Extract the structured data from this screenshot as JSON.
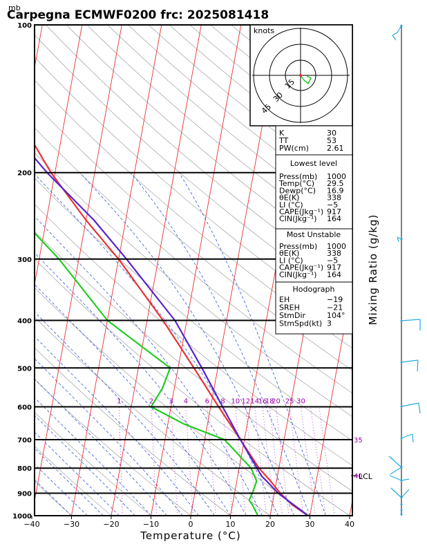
{
  "header": {
    "unit_mb": "mb",
    "title": "Carpegna ECMWF0200 frc: 2025081418"
  },
  "axes": {
    "x_label": "Temperature (°C)",
    "x_ticks": [
      "−40",
      "−30",
      "−20",
      "−10",
      "0",
      "10",
      "20",
      "30",
      "40"
    ],
    "right_label": "Mixing Ratio (g/kg)",
    "lcl_label": "LCL"
  },
  "chart_data": {
    "type": "line",
    "title": "Carpegna ECMWF0200 frc: 2025081418",
    "xlabel": "Temperature (°C)",
    "ylabel": "mb",
    "xlim": [
      -40,
      40
    ],
    "ylim": [
      1000,
      100
    ],
    "y_scale": "log",
    "y_ticks": [
      1000,
      900,
      800,
      700,
      600,
      500,
      400,
      300,
      200,
      100
    ],
    "mixing_ratio_lines": [
      "1",
      "2",
      "3",
      "4",
      "6",
      "8",
      "10",
      "12",
      "14",
      "16",
      "18",
      "20",
      "25",
      "30",
      "35",
      "40"
    ],
    "series": [
      {
        "name": "Temperature",
        "color": "#e63232",
        "points": [
          [
            1000,
            29.5
          ],
          [
            950,
            25
          ],
          [
            900,
            21.5
          ],
          [
            850,
            18.5
          ],
          [
            800,
            15
          ],
          [
            700,
            9
          ],
          [
            600,
            2
          ],
          [
            500,
            -6
          ],
          [
            400,
            -16
          ],
          [
            300,
            -30
          ],
          [
            250,
            -40
          ],
          [
            200,
            -51
          ],
          [
            150,
            -63
          ],
          [
            100,
            -73
          ]
        ]
      },
      {
        "name": "Dewpoint",
        "color": "#22cc22",
        "points": [
          [
            1000,
            16.9
          ],
          [
            950,
            15
          ],
          [
            930,
            14
          ],
          [
            900,
            14.5
          ],
          [
            850,
            15
          ],
          [
            800,
            13
          ],
          [
            700,
            5
          ],
          [
            650,
            -6
          ],
          [
            600,
            -15
          ],
          [
            550,
            -13
          ],
          [
            500,
            -12
          ],
          [
            400,
            -30
          ],
          [
            300,
            -45
          ],
          [
            250,
            -56
          ],
          [
            200,
            -64
          ],
          [
            150,
            -73
          ],
          [
            100,
            -84
          ]
        ]
      },
      {
        "name": "Parcel",
        "color": "#5522cc",
        "points": [
          [
            1000,
            29.5
          ],
          [
            900,
            21
          ],
          [
            850,
            17.5
          ],
          [
            830,
            16
          ],
          [
            800,
            14.5
          ],
          [
            700,
            9
          ],
          [
            600,
            3
          ],
          [
            500,
            -4
          ],
          [
            400,
            -13
          ],
          [
            300,
            -28
          ],
          [
            250,
            -38
          ],
          [
            200,
            -52
          ],
          [
            150,
            -68
          ],
          [
            100,
            -86
          ]
        ]
      }
    ]
  },
  "hodograph": {
    "label": "knots",
    "rings": [
      "15",
      "30",
      "45"
    ]
  },
  "indices": {
    "rows": [
      [
        "K",
        "30"
      ],
      [
        "TT",
        "53"
      ],
      [
        "PW(cm)",
        "2.61"
      ]
    ]
  },
  "lowest_level": {
    "heading": "Lowest level",
    "rows": [
      [
        "Press(mb)",
        "1000"
      ],
      [
        "Temp(°C)",
        "29.5"
      ],
      [
        "Dewp(°C)",
        "16.9"
      ],
      [
        "θE(K)",
        "338"
      ],
      [
        "LI (°C)",
        "−5"
      ],
      [
        "CAPE(Jkg⁻¹)",
        "917"
      ],
      [
        "CIN(Jkg⁻¹)",
        "164"
      ]
    ]
  },
  "most_unstable": {
    "heading": "Most Unstable",
    "rows": [
      [
        "Press(mb)",
        "1000"
      ],
      [
        "θE(K)",
        "338"
      ],
      [
        "LI (°C)",
        "−5"
      ],
      [
        "CAPE(Jkg⁻¹)",
        "917"
      ],
      [
        "CIN(Jkg⁻¹)",
        "164"
      ]
    ]
  },
  "hodo_table": {
    "heading": "Hodograph",
    "rows": [
      [
        "EH",
        "−19"
      ],
      [
        "SREH",
        "−21"
      ],
      [
        "StmDir",
        "104°"
      ],
      [
        "StmSpd(kt)",
        "3"
      ]
    ]
  }
}
